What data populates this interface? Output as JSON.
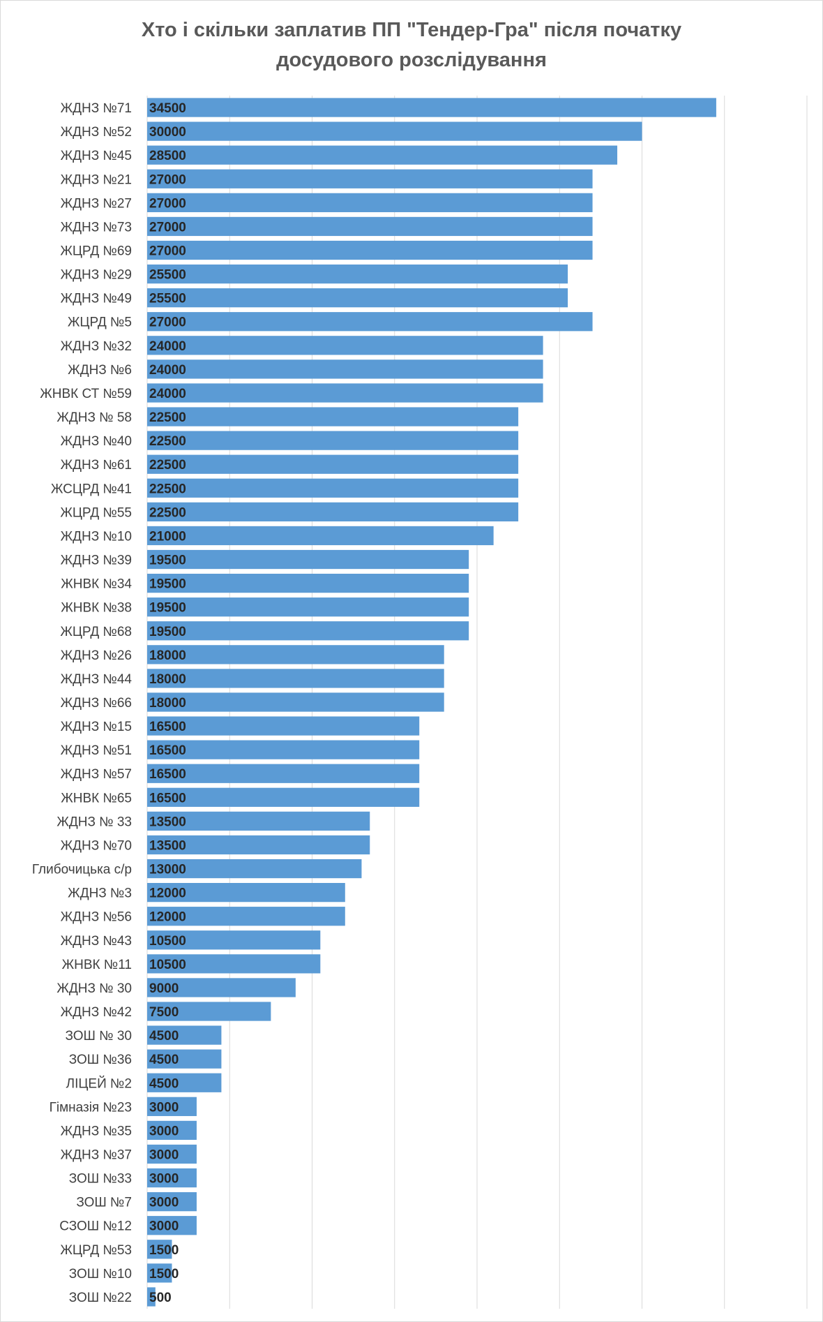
{
  "chart_data": {
    "type": "bar",
    "orientation": "horizontal",
    "title_lines": [
      "Хто і скільки заплатив ПП \"Тендер-Гра\" після початку",
      "досудового розслідування"
    ],
    "xlim": [
      0,
      40000
    ],
    "grid_step": 5000,
    "grid": true,
    "legend": "none",
    "bar_color": "#5B9BD5",
    "gridline_color": "#D9D9D9",
    "categories": [
      "ЖДНЗ №71",
      "ЖДНЗ №52",
      "ЖДНЗ №45",
      "ЖДНЗ №21",
      "ЖДНЗ №27",
      "ЖДНЗ №73",
      "ЖЦРД №69",
      "ЖДНЗ №29",
      "ЖДНЗ №49",
      "ЖЦРД №5",
      "ЖДНЗ №32",
      "ЖДНЗ №6",
      "ЖНВК СТ №59",
      "ЖДНЗ № 58",
      "ЖДНЗ №40",
      "ЖДНЗ №61",
      "ЖСЦРД №41",
      "ЖЦРД №55",
      "ЖДНЗ №10",
      "ЖДНЗ №39",
      "ЖНВК №34",
      "ЖНВК №38",
      "ЖЦРД №68",
      "ЖДНЗ №26",
      "ЖДНЗ №44",
      "ЖДНЗ №66",
      "ЖДНЗ №15",
      "ЖДНЗ №51",
      "ЖДНЗ №57",
      "ЖНВК №65",
      "ЖДНЗ № 33",
      "ЖДНЗ №70",
      "Глибочицька с/р",
      "ЖДНЗ №3",
      "ЖДНЗ №56",
      "ЖДНЗ №43",
      "ЖНВК №11",
      "ЖДНЗ № 30",
      "ЖДНЗ №42",
      "ЗОШ № 30",
      "ЗОШ №36",
      "ЛІЦЕЙ №2",
      "Гімназія №23",
      "ЖДНЗ №35",
      "ЖДНЗ №37",
      "ЗОШ №33",
      "ЗОШ №7",
      "СЗОШ №12",
      "ЖЦРД №53",
      "ЗОШ №10",
      "ЗОШ №22"
    ],
    "values": [
      34500,
      30000,
      28500,
      27000,
      27000,
      27000,
      27000,
      25500,
      25500,
      27000,
      24000,
      24000,
      24000,
      22500,
      22500,
      22500,
      22500,
      22500,
      21000,
      19500,
      19500,
      19500,
      19500,
      18000,
      18000,
      18000,
      16500,
      16500,
      16500,
      16500,
      13500,
      13500,
      13000,
      12000,
      12000,
      10500,
      10500,
      9000,
      7500,
      4500,
      4500,
      4500,
      3000,
      3000,
      3000,
      3000,
      3000,
      3000,
      1500,
      1500,
      500
    ]
  }
}
